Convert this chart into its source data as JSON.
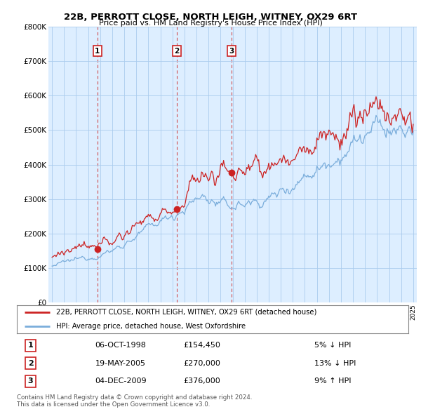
{
  "title": "22B, PERROTT CLOSE, NORTH LEIGH, WITNEY, OX29 6RT",
  "subtitle": "Price paid vs. HM Land Registry's House Price Index (HPI)",
  "legend_line1": "22B, PERROTT CLOSE, NORTH LEIGH, WITNEY, OX29 6RT (detached house)",
  "legend_line2": "HPI: Average price, detached house, West Oxfordshire",
  "transactions": [
    {
      "num": 1,
      "date": "06-OCT-1998",
      "price": 154450,
      "pct": "5%",
      "dir": "↓",
      "year": 1998.76
    },
    {
      "num": 2,
      "date": "19-MAY-2005",
      "price": 270000,
      "pct": "13%",
      "dir": "↓",
      "year": 2005.38
    },
    {
      "num": 3,
      "date": "04-DEC-2009",
      "price": 376000,
      "pct": "9%",
      "dir": "↑",
      "year": 2009.92
    }
  ],
  "footnote1": "Contains HM Land Registry data © Crown copyright and database right 2024.",
  "footnote2": "This data is licensed under the Open Government Licence v3.0.",
  "hpi_color": "#7aaddb",
  "price_color": "#cc2222",
  "chart_bg": "#ddeeff",
  "background_color": "#ffffff",
  "grid_color": "#aaccee"
}
